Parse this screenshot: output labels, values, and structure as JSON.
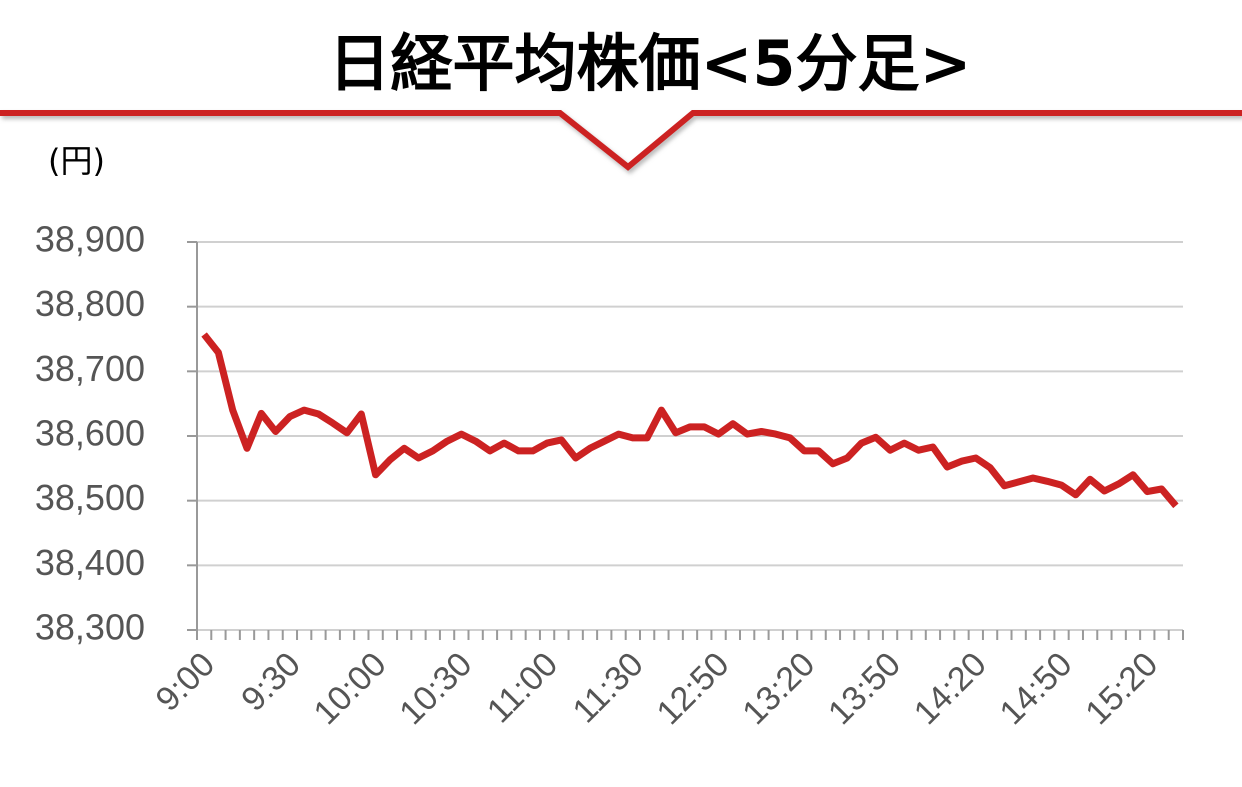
{
  "chart_data": {
    "type": "line",
    "title": "日経平均株価<5分足>",
    "y_label": "(円)",
    "categories": [
      "9:00",
      null,
      null,
      null,
      null,
      null,
      "9:30",
      null,
      null,
      null,
      null,
      null,
      "10:00",
      null,
      null,
      null,
      null,
      null,
      "10:30",
      null,
      null,
      null,
      null,
      null,
      "11:00",
      null,
      null,
      null,
      null,
      null,
      "11:30",
      null,
      null,
      null,
      null,
      null,
      "12:50",
      null,
      null,
      null,
      null,
      null,
      "13:20",
      null,
      null,
      null,
      null,
      null,
      "13:50",
      null,
      null,
      null,
      null,
      null,
      "14:20",
      null,
      null,
      null,
      null,
      null,
      "14:50",
      null,
      null,
      null,
      null,
      null,
      "15:20",
      null,
      null
    ],
    "values": [
      38757,
      38729,
      38640,
      38581,
      38635,
      38607,
      38630,
      38640,
      38634,
      38620,
      38605,
      38634,
      38540,
      38563,
      38581,
      38566,
      38577,
      38592,
      38603,
      38592,
      38577,
      38589,
      38577,
      38577,
      38589,
      38594,
      38566,
      38581,
      38592,
      38603,
      38597,
      38597,
      38640,
      38605,
      38614,
      38614,
      38603,
      38619,
      38603,
      38607,
      38603,
      38597,
      38577,
      38577,
      38557,
      38566,
      38589,
      38598,
      38578,
      38589,
      38578,
      38583,
      38552,
      38561,
      38566,
      38551,
      38523,
      38529,
      38535,
      38530,
      38524,
      38509,
      38533,
      38515,
      38526,
      38540,
      38514,
      38518,
      38492
    ],
    "color": "#cc2222",
    "ylim": [
      38300,
      38900
    ],
    "yticks": [
      {
        "value": 38300,
        "label": "38,300"
      },
      {
        "value": 38400,
        "label": "38,400"
      },
      {
        "value": 38500,
        "label": "38,500"
      },
      {
        "value": 38600,
        "label": "38,600"
      },
      {
        "value": 38700,
        "label": "38,700"
      },
      {
        "value": 38800,
        "label": "38,800"
      },
      {
        "value": 38900,
        "label": "38,900"
      }
    ],
    "grid": true
  }
}
